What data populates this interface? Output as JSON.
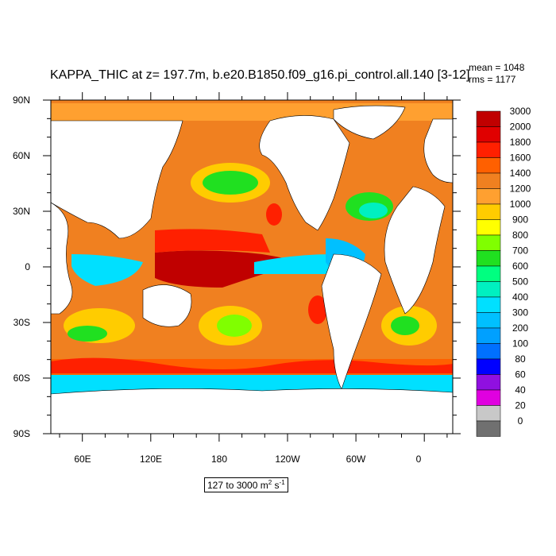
{
  "title": "KAPPA_THIC at z= 197.7m, b.e20.B1850.f09_g16.pi_control.all.140 [3-12]",
  "stats": {
    "mean": "mean = 1048",
    "rms": "rms = 1177"
  },
  "range_label": {
    "text": "127 to 3000 m",
    "sup1": "2",
    "unit2": " s",
    "sup2": "-1"
  },
  "axes": {
    "lat_labels": [
      "90N",
      "60N",
      "30N",
      "0",
      "30S",
      "60S",
      "90S"
    ],
    "lon_labels": [
      "60E",
      "120E",
      "180",
      "120W",
      "60W",
      "0"
    ]
  },
  "colorbar": {
    "levels": [
      "3000",
      "2000",
      "1800",
      "1600",
      "1400",
      "1200",
      "1000",
      "900",
      "800",
      "700",
      "600",
      "500",
      "400",
      "300",
      "200",
      "100",
      "80",
      "60",
      "40",
      "20",
      "0"
    ],
    "colors": [
      "#c00000",
      "#e00000",
      "#ff2000",
      "#ff6000",
      "#f08020",
      "#ffa030",
      "#ffcc00",
      "#ffff00",
      "#80ff00",
      "#20e020",
      "#00ff80",
      "#00f0c0",
      "#00e0ff",
      "#00c0ff",
      "#00a0ff",
      "#0070ff",
      "#0000ff",
      "#9010e0",
      "#e000e0",
      "#c8c8c8",
      "#707070"
    ]
  },
  "land_color": "#ffffff"
}
